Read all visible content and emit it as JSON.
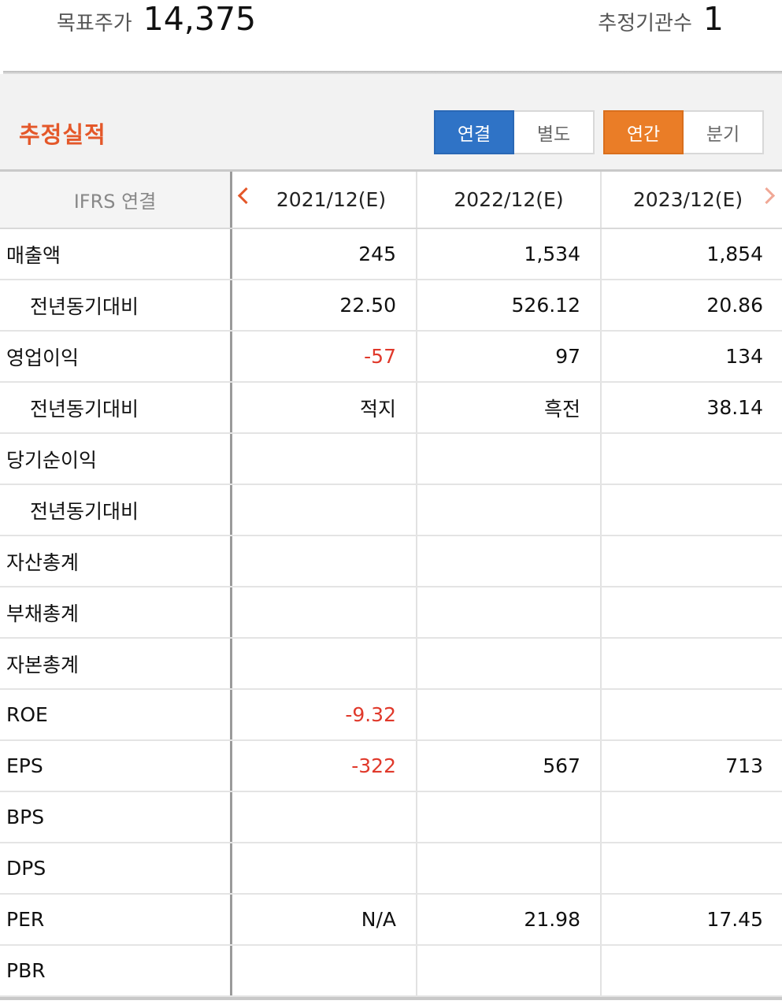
{
  "summary": {
    "target_price_label": "목표주가",
    "target_price_value": "14,375",
    "estimators_label": "추정기관수",
    "estimators_value": "1"
  },
  "section": {
    "title": "추정실적",
    "toggle_scope": [
      "연결",
      "별도"
    ],
    "toggle_scope_active": 0,
    "toggle_period": [
      "연간",
      "분기"
    ],
    "toggle_period_active": 0
  },
  "colors": {
    "accent_red": "#e4582a",
    "active_blue": "#2f73c6",
    "active_orange": "#ea7d27",
    "negative": "#e0392b"
  },
  "table": {
    "header_label": "IFRS 연결",
    "columns": [
      "2021/12(E)",
      "2022/12(E)",
      "2023/12(E)"
    ],
    "rows": [
      {
        "label": "매출액",
        "indent": false,
        "values": [
          "245",
          "1,534",
          "1,854"
        ]
      },
      {
        "label": "전년동기대비",
        "indent": true,
        "values": [
          "22.50",
          "526.12",
          "20.86"
        ]
      },
      {
        "label": "영업이익",
        "indent": false,
        "values": [
          "-57",
          "97",
          "134"
        ]
      },
      {
        "label": "전년동기대비",
        "indent": true,
        "values": [
          "적지",
          "흑전",
          "38.14"
        ]
      },
      {
        "label": "당기순이익",
        "indent": false,
        "values": [
          "",
          "",
          ""
        ]
      },
      {
        "label": "전년동기대비",
        "indent": true,
        "values": [
          "",
          "",
          ""
        ]
      },
      {
        "label": "자산총계",
        "indent": false,
        "values": [
          "",
          "",
          ""
        ]
      },
      {
        "label": "부채총계",
        "indent": false,
        "values": [
          "",
          "",
          ""
        ]
      },
      {
        "label": "자본총계",
        "indent": false,
        "values": [
          "",
          "",
          ""
        ]
      },
      {
        "label": "ROE",
        "indent": false,
        "values": [
          "-9.32",
          "",
          ""
        ]
      },
      {
        "label": "EPS",
        "indent": false,
        "values": [
          "-322",
          "567",
          "713"
        ]
      },
      {
        "label": "BPS",
        "indent": false,
        "values": [
          "",
          "",
          ""
        ]
      },
      {
        "label": "DPS",
        "indent": false,
        "values": [
          "",
          "",
          ""
        ]
      },
      {
        "label": "PER",
        "indent": false,
        "values": [
          "N/A",
          "21.98",
          "17.45"
        ]
      },
      {
        "label": "PBR",
        "indent": false,
        "values": [
          "",
          "",
          ""
        ]
      }
    ]
  }
}
